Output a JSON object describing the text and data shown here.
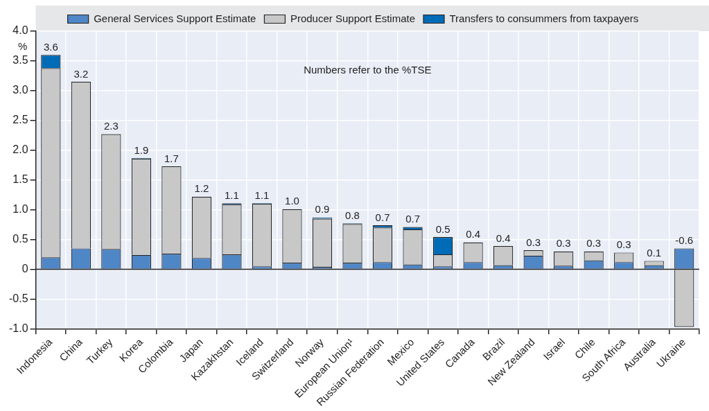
{
  "chart_data": {
    "type": "bar",
    "stacked": true,
    "ylabel": "%",
    "categories": [
      "Indonesia",
      "China",
      "Turkey",
      "Korea",
      "Colombia",
      "Japan",
      "Kazakhstan",
      "Iceland",
      "Switzerland",
      "Norway",
      "European Union¹",
      "Russian Federation",
      "Mexico",
      "United States",
      "Canada",
      "Brazil",
      "New Zealand",
      "Israel",
      "Chile",
      "South Africa",
      "Australia",
      "Ukraine"
    ],
    "series": [
      {
        "name": "General Services Support Estimate",
        "color": "#4f86c6",
        "values": [
          0.2,
          0.35,
          0.34,
          0.24,
          0.26,
          0.19,
          0.25,
          0.05,
          0.11,
          0.04,
          0.11,
          0.12,
          0.08,
          0.05,
          0.12,
          0.07,
          0.23,
          0.06,
          0.15,
          0.12,
          0.07,
          0.35
        ]
      },
      {
        "name": "Producer Support Estimate",
        "color": "#c8c8c8",
        "values": [
          3.18,
          2.8,
          1.93,
          1.62,
          1.47,
          1.03,
          0.84,
          1.05,
          0.9,
          0.81,
          0.65,
          0.58,
          0.59,
          0.2,
          0.33,
          0.32,
          0.09,
          0.24,
          0.15,
          0.16,
          0.07,
          -0.97
        ]
      },
      {
        "name": "Transfers to consummers from taxpayers",
        "color": "#006bb6",
        "values": [
          0.22,
          0,
          0,
          0.01,
          0,
          0,
          0.02,
          0.01,
          0,
          0.02,
          0.01,
          0.04,
          0.04,
          0.29,
          0,
          0,
          0,
          0,
          0,
          0,
          0,
          0
        ]
      }
    ],
    "totals": [
      "3.6",
      "3.2",
      "2.3",
      "1.9",
      "1.7",
      "1.2",
      "1.1",
      "1.1",
      "1.0",
      "0.9",
      "0.8",
      "0.7",
      "0.7",
      "0.5",
      "0.4",
      "0.4",
      "0.3",
      "0.3",
      "0.3",
      "0.3",
      "0.1",
      "-0.6"
    ],
    "ylim": [
      -1.0,
      4.0
    ],
    "yticks": [
      {
        "value": -1,
        "label": "-1.0"
      },
      {
        "value": -0.5,
        "label": "-0.5"
      },
      {
        "value": 0,
        "label": "0"
      },
      {
        "value": 0.5,
        "label": "0.5"
      },
      {
        "value": 1,
        "label": "1.0"
      },
      {
        "value": 1.5,
        "label": "1.5"
      },
      {
        "value": 2,
        "label": "2.0"
      },
      {
        "value": 2.5,
        "label": "2.5"
      },
      {
        "value": 3,
        "label": "3.0"
      },
      {
        "value": 3.5,
        "label": "3.5"
      },
      {
        "value": 4,
        "label": "4.0"
      }
    ],
    "grid": true,
    "legend": "top",
    "annotations": [
      "Numbers refer to the %TSE"
    ]
  }
}
